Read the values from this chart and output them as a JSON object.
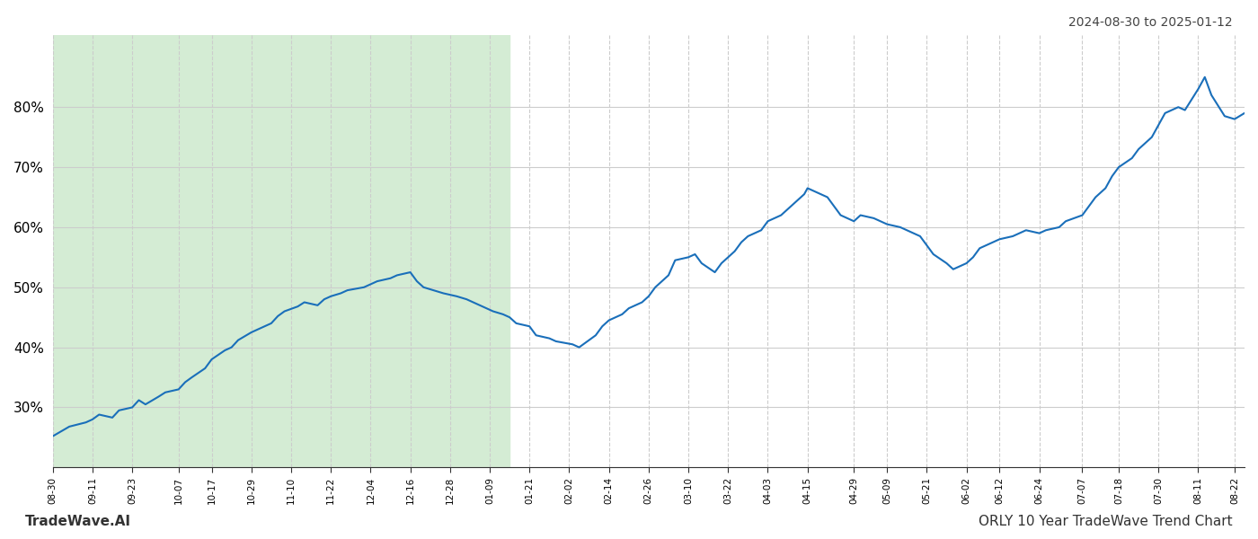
{
  "title_top_right": "2024-08-30 to 2025-01-12",
  "title_bottom_left": "TradeWave.AI",
  "title_bottom_right": "ORLY 10 Year TradeWave Trend Chart",
  "background_color": "#ffffff",
  "line_color": "#1a6fba",
  "line_width": 1.5,
  "shaded_region_color": "#d4ecd4",
  "shaded_region_start": "2024-08-30",
  "shaded_region_end": "2025-01-15",
  "y_ticks": [
    20,
    30,
    40,
    50,
    60,
    70,
    80
  ],
  "y_tick_labels": [
    "",
    "30%",
    "40%",
    "50%",
    "60%",
    "70%",
    "80%"
  ],
  "ylim": [
    20,
    92
  ],
  "grid_color": "#cccccc",
  "dates": [
    "2024-08-30",
    "2024-09-04",
    "2024-09-09",
    "2024-09-11",
    "2024-09-13",
    "2024-09-17",
    "2024-09-19",
    "2024-09-23",
    "2024-09-25",
    "2024-09-27",
    "2024-10-01",
    "2024-10-03",
    "2024-10-07",
    "2024-10-09",
    "2024-10-11",
    "2024-10-15",
    "2024-10-17",
    "2024-10-21",
    "2024-10-23",
    "2024-10-25",
    "2024-10-29",
    "2024-10-31",
    "2024-11-04",
    "2024-11-06",
    "2024-11-08",
    "2024-11-12",
    "2024-11-14",
    "2024-11-18",
    "2024-11-20",
    "2024-11-22",
    "2024-11-25",
    "2024-11-27",
    "2024-12-02",
    "2024-12-04",
    "2024-12-06",
    "2024-12-10",
    "2024-12-12",
    "2024-12-16",
    "2024-12-18",
    "2024-12-20",
    "2024-12-23",
    "2024-12-26",
    "2024-12-30",
    "2025-01-02",
    "2025-01-06",
    "2025-01-08",
    "2025-01-10",
    "2025-01-13",
    "2025-01-15",
    "2025-01-17",
    "2025-01-21",
    "2025-01-23",
    "2025-01-27",
    "2025-01-29",
    "2025-02-03",
    "2025-02-05",
    "2025-02-07",
    "2025-02-10",
    "2025-02-12",
    "2025-02-14",
    "2025-02-18",
    "2025-02-20",
    "2025-02-24",
    "2025-02-26",
    "2025-02-28",
    "2025-03-04",
    "2025-03-06",
    "2025-03-10",
    "2025-03-12",
    "2025-03-14",
    "2025-03-18",
    "2025-03-20",
    "2025-03-24",
    "2025-03-26",
    "2025-03-28",
    "2025-04-01",
    "2025-04-03",
    "2025-04-07",
    "2025-04-09",
    "2025-04-11",
    "2025-04-14",
    "2025-04-15",
    "2025-04-17",
    "2025-04-21",
    "2025-04-23",
    "2025-04-25",
    "2025-04-29",
    "2025-05-01",
    "2025-05-05",
    "2025-05-07",
    "2025-05-09",
    "2025-05-13",
    "2025-05-15",
    "2025-05-19",
    "2025-05-21",
    "2025-05-23",
    "2025-05-27",
    "2025-05-29",
    "2025-06-02",
    "2025-06-04",
    "2025-06-06",
    "2025-06-10",
    "2025-06-12",
    "2025-06-16",
    "2025-06-18",
    "2025-06-20",
    "2025-06-24",
    "2025-06-26",
    "2025-06-30",
    "2025-07-02",
    "2025-07-07",
    "2025-07-09",
    "2025-07-11",
    "2025-07-14",
    "2025-07-16",
    "2025-07-18",
    "2025-07-22",
    "2025-07-24",
    "2025-07-28",
    "2025-07-30",
    "2025-08-01",
    "2025-08-05",
    "2025-08-07",
    "2025-08-11",
    "2025-08-13",
    "2025-08-15",
    "2025-08-19",
    "2025-08-22",
    "2025-08-25"
  ],
  "values": [
    25.2,
    26.8,
    27.5,
    28.0,
    28.8,
    28.3,
    29.5,
    30.0,
    31.2,
    30.5,
    31.8,
    32.5,
    33.0,
    34.2,
    35.0,
    36.5,
    38.0,
    39.5,
    40.0,
    41.2,
    42.5,
    43.0,
    44.0,
    45.2,
    46.0,
    46.8,
    47.5,
    47.0,
    48.0,
    48.5,
    49.0,
    49.5,
    50.0,
    50.5,
    51.0,
    51.5,
    52.0,
    52.5,
    51.0,
    50.0,
    49.5,
    49.0,
    48.5,
    48.0,
    47.0,
    46.5,
    46.0,
    45.5,
    45.0,
    44.0,
    43.5,
    42.0,
    41.5,
    41.0,
    40.5,
    40.0,
    40.8,
    42.0,
    43.5,
    44.5,
    45.5,
    46.5,
    47.5,
    48.5,
    50.0,
    52.0,
    54.5,
    55.0,
    55.5,
    54.0,
    52.5,
    54.0,
    56.0,
    57.5,
    58.5,
    59.5,
    61.0,
    62.0,
    63.0,
    64.0,
    65.5,
    66.5,
    66.0,
    65.0,
    63.5,
    62.0,
    61.0,
    62.0,
    61.5,
    61.0,
    60.5,
    60.0,
    59.5,
    58.5,
    57.0,
    55.5,
    54.0,
    53.0,
    54.0,
    55.0,
    56.5,
    57.5,
    58.0,
    58.5,
    59.0,
    59.5,
    59.0,
    59.5,
    60.0,
    61.0,
    62.0,
    63.5,
    65.0,
    66.5,
    68.5,
    70.0,
    71.5,
    73.0,
    75.0,
    77.0,
    79.0,
    80.0,
    79.5,
    83.0,
    85.0,
    82.0,
    78.5,
    78.0,
    79.0
  ],
  "x_tick_labels": [
    "08-30",
    "09-11",
    "09-23",
    "10-07",
    "10-17",
    "10-29",
    "11-10",
    "11-22",
    "12-04",
    "12-16",
    "12-28",
    "01-09",
    "01-21",
    "02-02",
    "02-14",
    "02-26",
    "03-10",
    "03-22",
    "04-03",
    "04-15",
    "04-29",
    "05-09",
    "05-21",
    "06-02",
    "06-12",
    "06-24",
    "07-07",
    "07-18",
    "07-30",
    "08-11",
    "08-22"
  ]
}
